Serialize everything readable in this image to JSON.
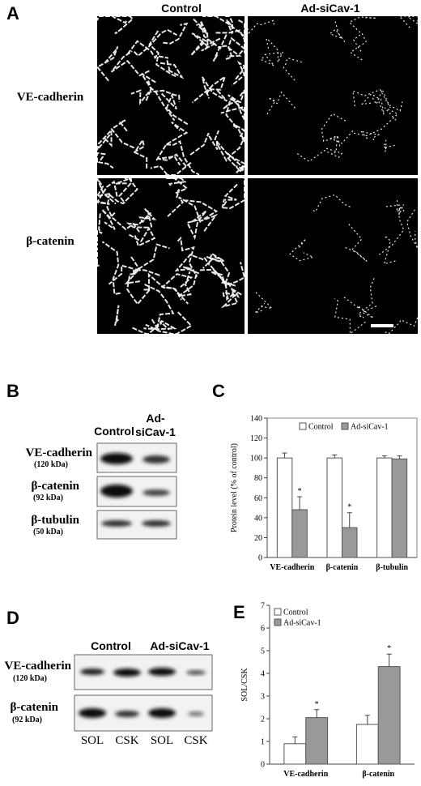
{
  "panel_a": {
    "label": "A",
    "columns": [
      "Control",
      "Ad-siCav-1"
    ],
    "rows": [
      "VE-cadherin",
      "β-catenin"
    ]
  },
  "panel_b": {
    "label": "B",
    "columns": [
      "Control",
      "Ad-",
      "siCav-1"
    ],
    "rows": [
      {
        "name": "VE-cadherin",
        "size": "(120 kDa)"
      },
      {
        "name": "β-catenin",
        "size": "(92 kDa)"
      },
      {
        "name": "β-tubulin",
        "size": "(50 kDa)"
      }
    ]
  },
  "panel_d": {
    "label": "D",
    "columns": [
      "Control",
      "Ad-siCav-1"
    ],
    "rows": [
      {
        "name": "VE-cadherin",
        "size": "(120 kDa)"
      },
      {
        "name": "β-catenin",
        "size": "(92 kDa)"
      }
    ],
    "lanes": [
      "SOL",
      "CSK",
      "SOL",
      "CSK"
    ]
  },
  "chart_data": [
    {
      "type": "bar",
      "label": "C",
      "ylabel": "Protein level (% of control)",
      "categories": [
        "VE-cadherin",
        "β-catenin",
        "β-tubulin"
      ],
      "series": [
        {
          "name": "Control",
          "color": "#ffffff",
          "values": [
            100,
            100,
            100
          ],
          "errors": [
            5,
            3,
            2
          ],
          "markers": [
            null,
            null,
            null
          ]
        },
        {
          "name": "Ad-siCav-1",
          "color": "#999999",
          "values": [
            48,
            30,
            99
          ],
          "errors": [
            13,
            15,
            3
          ],
          "markers": [
            "*",
            "*",
            null
          ]
        }
      ],
      "ylim": [
        0,
        140
      ],
      "yticks": [
        0,
        20,
        40,
        60,
        80,
        100,
        120,
        140
      ],
      "legend": "upper center",
      "frame": true
    },
    {
      "type": "bar",
      "label": "E",
      "ylabel": "SOL/CSK",
      "categories": [
        "VE-cadherin",
        "β-catenin"
      ],
      "series": [
        {
          "name": "Control",
          "color": "#ffffff",
          "values": [
            0.9,
            1.75
          ],
          "errors": [
            0.3,
            0.4
          ],
          "markers": [
            null,
            null
          ]
        },
        {
          "name": "Ad-siCav-1",
          "color": "#999999",
          "values": [
            2.05,
            4.3
          ],
          "errors": [
            0.35,
            0.55
          ],
          "markers": [
            "*",
            "*"
          ]
        }
      ],
      "ylim": [
        0,
        7
      ],
      "yticks": [
        0,
        1,
        2,
        3,
        4,
        5,
        6,
        7
      ],
      "legend": "upper left",
      "frame": false
    }
  ]
}
